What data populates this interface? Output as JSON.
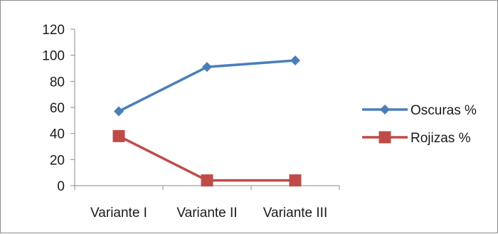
{
  "chart_data": {
    "type": "line",
    "categories": [
      "Variante I",
      "Variante II",
      "Variante III"
    ],
    "series": [
      {
        "name": "Oscuras %",
        "values": [
          57,
          91,
          96
        ],
        "color": "#4a7ebb",
        "marker": "diamond"
      },
      {
        "name": "Rojizas %",
        "values": [
          38,
          4,
          4
        ],
        "color": "#be4b48",
        "marker": "square"
      }
    ],
    "ylim": [
      0,
      120
    ],
    "yticks": [
      0,
      20,
      40,
      60,
      80,
      100,
      120
    ],
    "grid": false,
    "legend_position": "right"
  }
}
